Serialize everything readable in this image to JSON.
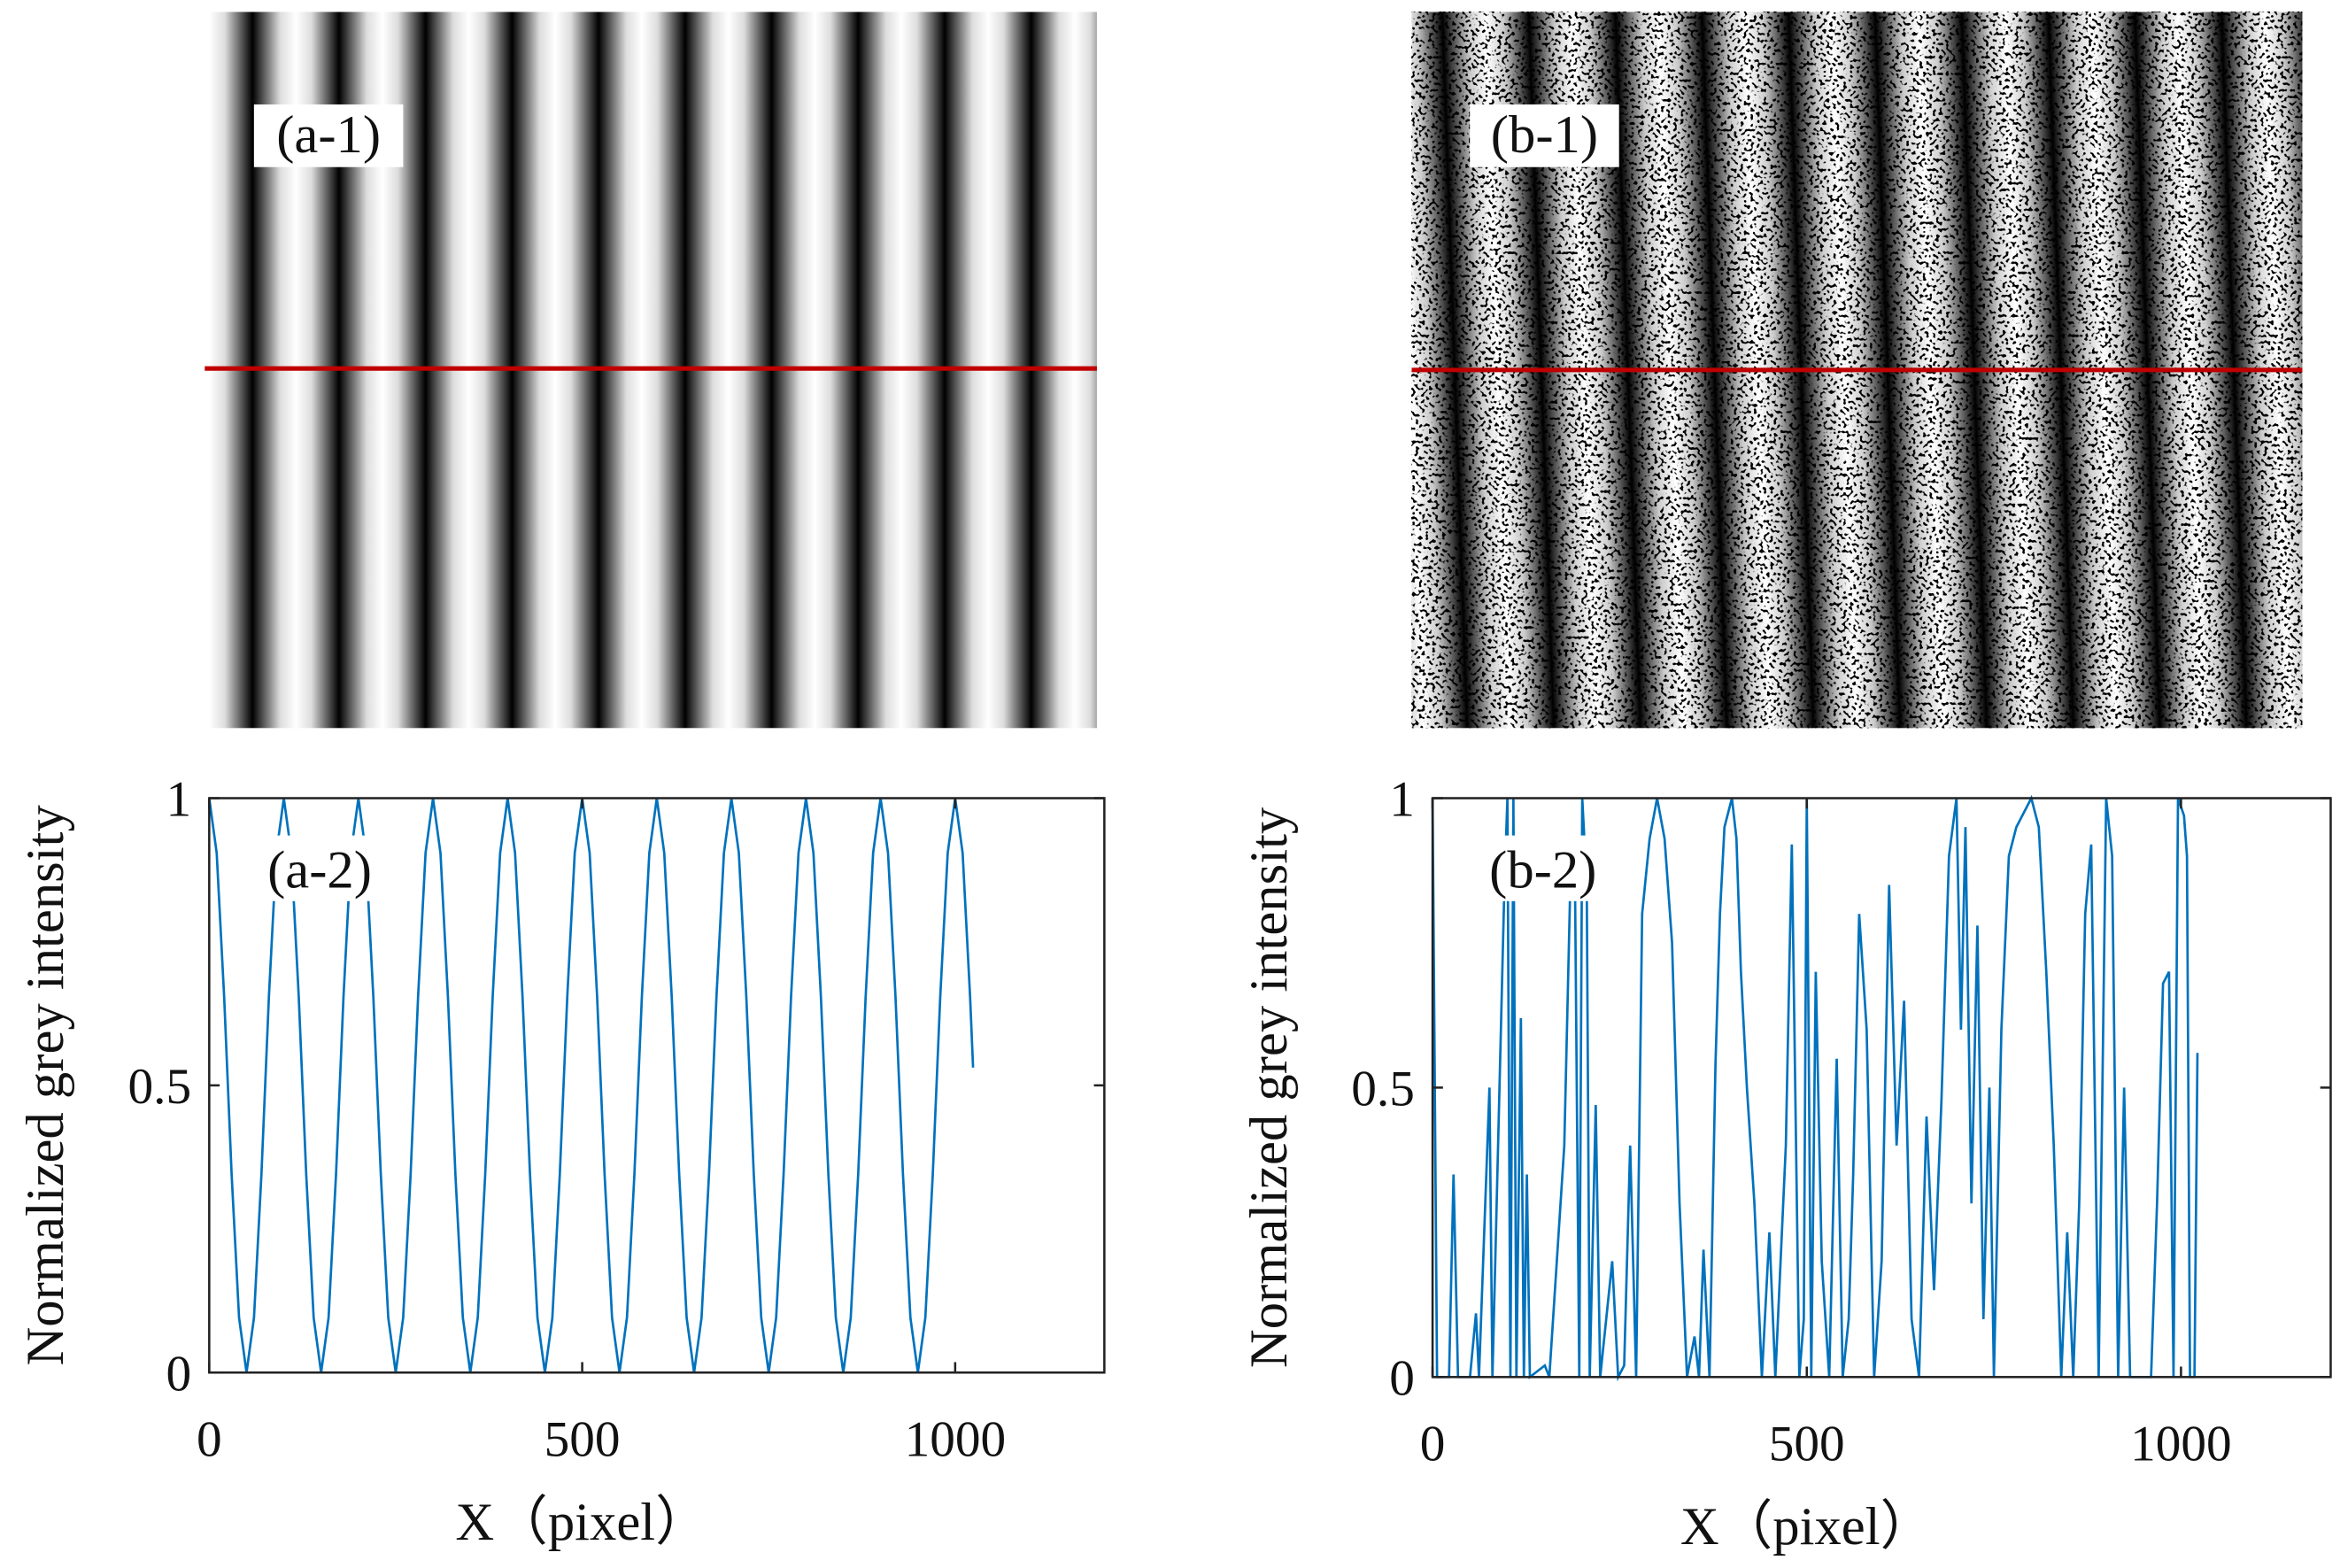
{
  "images": [
    {
      "label": "(a-1)"
    },
    {
      "label": "(b-1)"
    }
  ],
  "chart_data": [
    {
      "type": "line",
      "annotation": "(a-2)",
      "xlabel": "X（pixel）",
      "ylabel": "Normalized grey intensity",
      "color": "#0072bd",
      "xlim": [
        0,
        1200
      ],
      "ylim": [
        0,
        1
      ],
      "xticks": [
        0,
        500,
        1000
      ],
      "yticks": [
        0,
        0.5,
        1
      ],
      "x": [
        0,
        10,
        20,
        30,
        40,
        50,
        60,
        70,
        80,
        90,
        100,
        110,
        120,
        130,
        140,
        150,
        160,
        170,
        180,
        190,
        200,
        210,
        220,
        230,
        240,
        250,
        260,
        270,
        280,
        290,
        300,
        310,
        320,
        330,
        340,
        350,
        360,
        370,
        380,
        390,
        400,
        410,
        420,
        430,
        440,
        450,
        460,
        470,
        480,
        490,
        500,
        510,
        520,
        530,
        540,
        550,
        560,
        570,
        580,
        590,
        600,
        610,
        620,
        630,
        640,
        650,
        660,
        670,
        680,
        690,
        700,
        710,
        720,
        730,
        740,
        750,
        760,
        770,
        780,
        790,
        800,
        810,
        820,
        830,
        840,
        850,
        860,
        870,
        880,
        890,
        900,
        910,
        920,
        930,
        940,
        950,
        960,
        970,
        980,
        990,
        1000,
        1010,
        1020,
        1024
      ],
      "values": [
        1,
        0.9045,
        0.6545,
        0.3455,
        0.0955,
        0,
        0.0955,
        0.3455,
        0.6545,
        0.9045,
        1,
        0.9045,
        0.6545,
        0.3455,
        0.0955,
        0,
        0.0955,
        0.3455,
        0.6545,
        0.9045,
        1,
        0.9045,
        0.6545,
        0.3455,
        0.0955,
        0,
        0.0955,
        0.3455,
        0.6545,
        0.9045,
        1,
        0.9045,
        0.6545,
        0.3455,
        0.0955,
        0,
        0.0955,
        0.3455,
        0.6545,
        0.9045,
        1,
        0.9045,
        0.6545,
        0.3455,
        0.0955,
        0,
        0.0955,
        0.3455,
        0.6545,
        0.9045,
        1,
        0.9045,
        0.6545,
        0.3455,
        0.0955,
        0,
        0.0955,
        0.3455,
        0.6545,
        0.9045,
        1,
        0.9045,
        0.6545,
        0.3455,
        0.0955,
        0,
        0.0955,
        0.3455,
        0.6545,
        0.9045,
        1,
        0.9045,
        0.6545,
        0.3455,
        0.0955,
        0,
        0.0955,
        0.3455,
        0.6545,
        0.9045,
        1,
        0.9045,
        0.6545,
        0.3455,
        0.0955,
        0,
        0.0955,
        0.3455,
        0.6545,
        0.9045,
        1,
        0.9045,
        0.6545,
        0.3455,
        0.0955,
        0,
        0.0955,
        0.3455,
        0.6545,
        0.9045,
        1,
        0.9045,
        0.6545,
        0.531
      ]
    },
    {
      "type": "line",
      "annotation": "(b-2)",
      "xlabel": "X（pixel）",
      "ylabel": "Normalized grey intensity",
      "color": "#0072bd",
      "xlim": [
        0,
        1200
      ],
      "ylim": [
        0,
        1
      ],
      "xticks": [
        0,
        500,
        1000
      ],
      "yticks": [
        0,
        0.5,
        1
      ],
      "x": [
        0,
        6,
        22,
        28,
        34,
        50,
        58,
        62,
        76,
        80,
        96,
        100,
        104,
        108,
        112,
        118,
        122,
        126,
        130,
        150,
        156,
        176,
        184,
        190,
        196,
        200,
        206,
        210,
        218,
        224,
        240,
        248,
        256,
        264,
        272,
        280,
        290,
        300,
        310,
        320,
        330,
        340,
        350,
        356,
        362,
        370,
        378,
        384,
        390,
        400,
        406,
        412,
        420,
        430,
        440,
        450,
        458,
        472,
        480,
        490,
        496,
        500,
        506,
        512,
        520,
        530,
        540,
        548,
        556,
        562,
        570,
        580,
        590,
        600,
        610,
        620,
        630,
        640,
        650,
        660,
        670,
        680,
        690,
        700,
        706,
        712,
        720,
        728,
        736,
        744,
        750,
        760,
        770,
        780,
        800,
        810,
        820,
        830,
        840,
        848,
        856,
        864,
        872,
        880,
        890,
        900,
        908,
        916,
        924,
        932,
        960,
        968,
        976,
        984,
        990,
        996,
        1004,
        1008,
        1012,
        1018,
        1022
      ],
      "values": [
        1,
        0,
        0,
        0.35,
        0,
        0,
        0.11,
        0,
        0.5,
        0,
        0.85,
        1,
        0,
        1,
        0,
        0.62,
        0,
        0.35,
        0,
        0.02,
        0,
        0.4,
        0.85,
        0.9,
        0,
        1,
        0.85,
        0,
        0.47,
        0,
        0.2,
        0,
        0.02,
        0.4,
        0,
        0.8,
        0.93,
        1,
        0.93,
        0.75,
        0.3,
        0,
        0.07,
        0,
        0.22,
        0,
        0.54,
        0.8,
        0.95,
        1,
        0.93,
        0.7,
        0.5,
        0.3,
        0,
        0.25,
        0,
        0.4,
        0.92,
        0,
        0.1,
        1,
        0,
        0.7,
        0.2,
        0,
        0.55,
        0,
        0.1,
        0.35,
        0.8,
        0.6,
        0,
        0.2,
        0.85,
        0.4,
        0.65,
        0.1,
        0,
        0.45,
        0.15,
        0.48,
        0.9,
        1,
        0.6,
        0.95,
        0.3,
        0.78,
        0.1,
        0.5,
        0,
        0.6,
        0.9,
        0.95,
        1,
        0.95,
        0.7,
        0.4,
        0,
        0.25,
        0,
        0.3,
        0.8,
        0.92,
        0,
        1,
        0.9,
        0,
        0.5,
        0,
        0,
        0.3,
        0.68,
        0.7,
        0,
        1,
        0.97,
        0.9,
        0,
        0,
        0.56
      ]
    }
  ]
}
